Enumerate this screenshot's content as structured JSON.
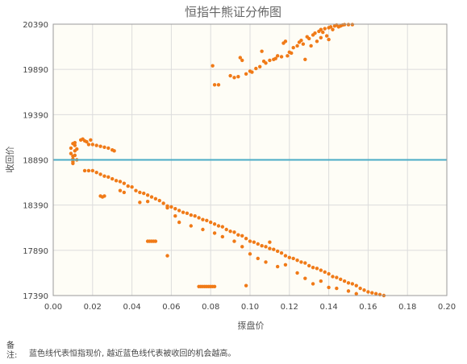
{
  "chart_data": {
    "type": "scatter",
    "title": "恒指牛熊证分佈图",
    "xlabel": "揼盘价",
    "ylabel": "收回价",
    "xlim": [
      0.0,
      0.2
    ],
    "ylim": [
      17390,
      20390
    ],
    "x_ticks": [
      "0.00",
      "0.02",
      "0.04",
      "0.06",
      "0.08",
      "0.10",
      "0.12",
      "0.14",
      "0.16",
      "0.18",
      "0.20"
    ],
    "y_ticks": [
      "17390",
      "17890",
      "18390",
      "18890",
      "19390",
      "19890",
      "20390"
    ],
    "reference_line": {
      "y": 18890,
      "color": "#4bacc6"
    },
    "point_color": "#f07a17",
    "plot_background": "#fefdf6",
    "grid": true,
    "bull_points": [
      [
        0.081,
        19930
      ],
      [
        0.082,
        19720
      ],
      [
        0.084,
        19720
      ],
      [
        0.09,
        19820
      ],
      [
        0.092,
        19800
      ],
      [
        0.094,
        19810
      ],
      [
        0.095,
        20020
      ],
      [
        0.096,
        19990
      ],
      [
        0.098,
        19840
      ],
      [
        0.1,
        19870
      ],
      [
        0.101,
        19860
      ],
      [
        0.103,
        19900
      ],
      [
        0.105,
        19920
      ],
      [
        0.106,
        20090
      ],
      [
        0.107,
        19980
      ],
      [
        0.108,
        19960
      ],
      [
        0.11,
        19990
      ],
      [
        0.112,
        20000
      ],
      [
        0.113,
        20010
      ],
      [
        0.114,
        20040
      ],
      [
        0.116,
        20030
      ],
      [
        0.117,
        20180
      ],
      [
        0.118,
        20200
      ],
      [
        0.119,
        20040
      ],
      [
        0.12,
        20080
      ],
      [
        0.121,
        20070
      ],
      [
        0.122,
        20130
      ],
      [
        0.124,
        20150
      ],
      [
        0.125,
        20190
      ],
      [
        0.126,
        20210
      ],
      [
        0.127,
        20170
      ],
      [
        0.128,
        20000
      ],
      [
        0.129,
        20250
      ],
      [
        0.13,
        20230
      ],
      [
        0.131,
        20150
      ],
      [
        0.132,
        20270
      ],
      [
        0.133,
        20290
      ],
      [
        0.134,
        20200
      ],
      [
        0.135,
        20310
      ],
      [
        0.136,
        20330
      ],
      [
        0.137,
        20300
      ],
      [
        0.138,
        20340
      ],
      [
        0.139,
        20260
      ],
      [
        0.14,
        20350
      ],
      [
        0.141,
        20360
      ],
      [
        0.142,
        20330
      ],
      [
        0.143,
        20370
      ],
      [
        0.144,
        20380
      ],
      [
        0.145,
        20360
      ],
      [
        0.146,
        20370
      ],
      [
        0.147,
        20380
      ],
      [
        0.148,
        20385
      ],
      [
        0.15,
        20385
      ],
      [
        0.152,
        20385
      ],
      [
        0.136,
        20240
      ],
      [
        0.14,
        20220
      ]
    ],
    "bear_points": [
      [
        0.009,
        19020
      ],
      [
        0.009,
        18960
      ],
      [
        0.01,
        18930
      ],
      [
        0.01,
        18900
      ],
      [
        0.01,
        18870
      ],
      [
        0.011,
        18990
      ],
      [
        0.011,
        19050
      ],
      [
        0.011,
        18940
      ],
      [
        0.012,
        18890
      ],
      [
        0.012,
        19010
      ],
      [
        0.01,
        19070
      ],
      [
        0.011,
        19080
      ],
      [
        0.01,
        18850
      ],
      [
        0.014,
        19110
      ],
      [
        0.015,
        19120
      ],
      [
        0.016,
        19100
      ],
      [
        0.017,
        19090
      ],
      [
        0.018,
        19060
      ],
      [
        0.019,
        19110
      ],
      [
        0.02,
        19060
      ],
      [
        0.022,
        19050
      ],
      [
        0.024,
        19040
      ],
      [
        0.026,
        19030
      ],
      [
        0.028,
        19020
      ],
      [
        0.03,
        19000
      ],
      [
        0.031,
        18990
      ],
      [
        0.016,
        18770
      ],
      [
        0.018,
        18770
      ],
      [
        0.02,
        18770
      ],
      [
        0.022,
        18750
      ],
      [
        0.024,
        18730
      ],
      [
        0.026,
        18710
      ],
      [
        0.028,
        18700
      ],
      [
        0.03,
        18680
      ],
      [
        0.032,
        18660
      ],
      [
        0.034,
        18650
      ],
      [
        0.036,
        18630
      ],
      [
        0.038,
        18600
      ],
      [
        0.04,
        18590
      ],
      [
        0.042,
        18550
      ],
      [
        0.044,
        18530
      ],
      [
        0.046,
        18520
      ],
      [
        0.048,
        18500
      ],
      [
        0.05,
        18480
      ],
      [
        0.052,
        18460
      ],
      [
        0.054,
        18440
      ],
      [
        0.056,
        18410
      ],
      [
        0.058,
        18380
      ],
      [
        0.06,
        18370
      ],
      [
        0.062,
        18350
      ],
      [
        0.064,
        18330
      ],
      [
        0.066,
        18310
      ],
      [
        0.068,
        18300
      ],
      [
        0.07,
        18280
      ],
      [
        0.072,
        18270
      ],
      [
        0.074,
        18250
      ],
      [
        0.076,
        18230
      ],
      [
        0.078,
        18220
      ],
      [
        0.08,
        18200
      ],
      [
        0.082,
        18180
      ],
      [
        0.084,
        18160
      ],
      [
        0.086,
        18150
      ],
      [
        0.088,
        18120
      ],
      [
        0.09,
        18100
      ],
      [
        0.092,
        18090
      ],
      [
        0.094,
        18060
      ],
      [
        0.096,
        18050
      ],
      [
        0.098,
        18020
      ],
      [
        0.1,
        17990
      ],
      [
        0.102,
        17980
      ],
      [
        0.104,
        17960
      ],
      [
        0.106,
        17940
      ],
      [
        0.108,
        17930
      ],
      [
        0.11,
        17910
      ],
      [
        0.112,
        17900
      ],
      [
        0.114,
        17880
      ],
      [
        0.116,
        17860
      ],
      [
        0.118,
        17830
      ],
      [
        0.12,
        17810
      ],
      [
        0.122,
        17800
      ],
      [
        0.124,
        17780
      ],
      [
        0.126,
        17760
      ],
      [
        0.128,
        17750
      ],
      [
        0.13,
        17720
      ],
      [
        0.132,
        17700
      ],
      [
        0.134,
        17690
      ],
      [
        0.136,
        17670
      ],
      [
        0.138,
        17650
      ],
      [
        0.14,
        17630
      ],
      [
        0.142,
        17600
      ],
      [
        0.144,
        17590
      ],
      [
        0.146,
        17570
      ],
      [
        0.148,
        17550
      ],
      [
        0.15,
        17530
      ],
      [
        0.152,
        17520
      ],
      [
        0.154,
        17500
      ],
      [
        0.156,
        17470
      ],
      [
        0.158,
        17450
      ],
      [
        0.16,
        17430
      ],
      [
        0.162,
        17420
      ],
      [
        0.164,
        17410
      ],
      [
        0.166,
        17400
      ],
      [
        0.168,
        17390
      ],
      [
        0.024,
        18490
      ],
      [
        0.025,
        18480
      ],
      [
        0.026,
        18490
      ],
      [
        0.034,
        18550
      ],
      [
        0.036,
        18530
      ],
      [
        0.044,
        18420
      ],
      [
        0.048,
        18430
      ],
      [
        0.058,
        18360
      ],
      [
        0.062,
        18270
      ],
      [
        0.064,
        18200
      ],
      [
        0.07,
        18160
      ],
      [
        0.076,
        18120
      ],
      [
        0.082,
        18080
      ],
      [
        0.086,
        18040
      ],
      [
        0.092,
        17990
      ],
      [
        0.096,
        17930
      ],
      [
        0.1,
        17850
      ],
      [
        0.104,
        17800
      ],
      [
        0.108,
        17760
      ],
      [
        0.11,
        17980
      ],
      [
        0.114,
        17710
      ],
      [
        0.118,
        17730
      ],
      [
        0.124,
        17640
      ],
      [
        0.128,
        17580
      ],
      [
        0.132,
        17520
      ],
      [
        0.136,
        17550
      ],
      [
        0.14,
        17480
      ],
      [
        0.144,
        17470
      ],
      [
        0.15,
        17440
      ],
      [
        0.154,
        17410
      ],
      [
        0.048,
        17990
      ],
      [
        0.049,
        17990
      ],
      [
        0.05,
        17990
      ],
      [
        0.051,
        17990
      ],
      [
        0.052,
        17990
      ],
      [
        0.058,
        17830
      ],
      [
        0.074,
        17490
      ],
      [
        0.075,
        17490
      ],
      [
        0.076,
        17490
      ],
      [
        0.077,
        17490
      ],
      [
        0.078,
        17490
      ],
      [
        0.079,
        17490
      ],
      [
        0.08,
        17490
      ],
      [
        0.081,
        17490
      ],
      [
        0.082,
        17490
      ],
      [
        0.098,
        17500
      ]
    ]
  },
  "footnote": {
    "label": "备注:",
    "text": "蓝色线代表恒指现价, 越近蓝色线代表被收回的机会越高。"
  }
}
